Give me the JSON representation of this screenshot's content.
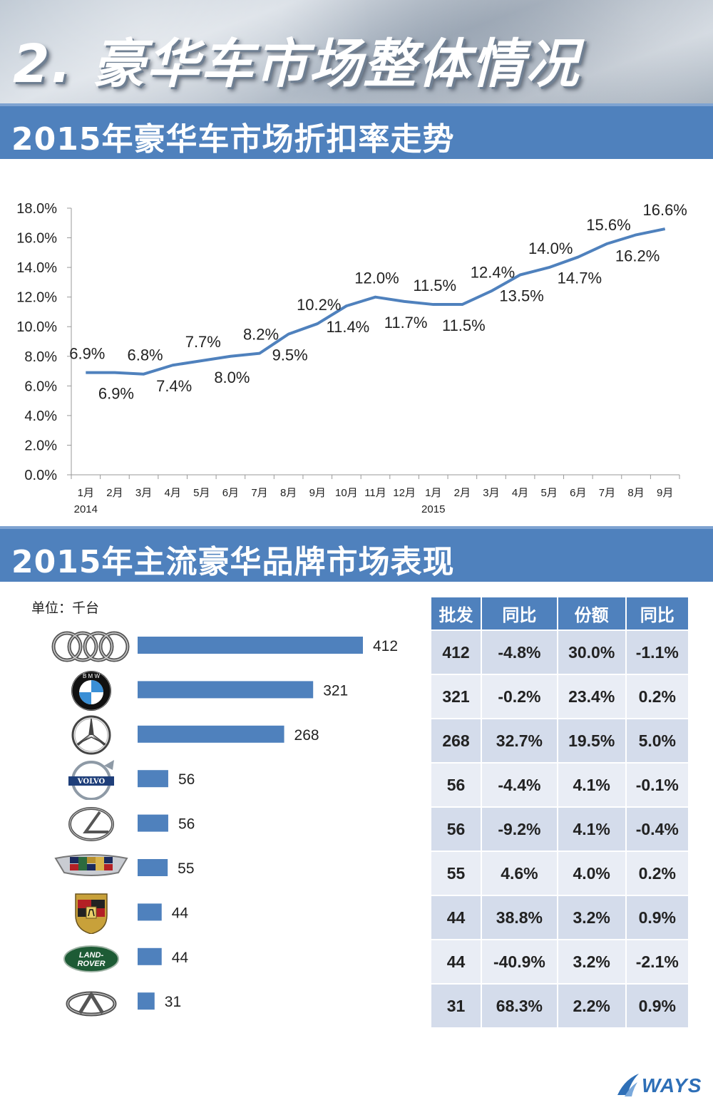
{
  "header": {
    "title": "2. 豪华车市场整体情况"
  },
  "sections": {
    "discount_title": "2015年豪华车市场折扣率走势",
    "brands_title": "2015年主流豪华品牌市场表现"
  },
  "chart_data": [
    {
      "type": "line",
      "title": "2015年豪华车市场折扣率走势",
      "categories": [
        "1月",
        "2月",
        "3月",
        "4月",
        "5月",
        "6月",
        "7月",
        "8月",
        "9月",
        "10月",
        "11月",
        "12月",
        "1月",
        "2月",
        "3月",
        "4月",
        "5月",
        "6月",
        "7月",
        "8月",
        "9月"
      ],
      "year_labels": [
        {
          "index": 0,
          "label": "2014"
        },
        {
          "index": 12,
          "label": "2015"
        }
      ],
      "values": [
        6.9,
        6.9,
        6.8,
        7.4,
        7.7,
        8.0,
        8.2,
        9.5,
        10.2,
        11.4,
        12.0,
        11.7,
        11.5,
        11.5,
        12.4,
        13.5,
        14.0,
        14.7,
        15.6,
        16.2,
        16.6
      ],
      "value_labels": [
        "6.9%",
        "6.9%",
        "6.8%",
        "7.4%",
        "7.7%",
        "8.0%",
        "8.2%",
        "9.5%",
        "10.2%",
        "11.4%",
        "12.0%",
        "11.7%",
        "11.5%",
        "11.5%",
        "12.4%",
        "13.5%",
        "14.0%",
        "14.7%",
        "15.6%",
        "16.2%",
        "16.6%"
      ],
      "label_position": [
        "above",
        "below",
        "above",
        "below",
        "above",
        "below",
        "above",
        "below",
        "above",
        "below",
        "above",
        "below",
        "above",
        "below",
        "above",
        "below",
        "above",
        "below",
        "above",
        "below",
        "above"
      ],
      "ylim": [
        0,
        18
      ],
      "yticks": [
        "0.0%",
        "2.0%",
        "4.0%",
        "6.0%",
        "8.0%",
        "10.0%",
        "12.0%",
        "14.0%",
        "16.0%",
        "18.0%"
      ],
      "xlabel": "",
      "ylabel": ""
    },
    {
      "type": "bar",
      "orientation": "horizontal",
      "unit": "单位：千台",
      "categories": [
        "Audi",
        "BMW",
        "Mercedes-Benz",
        "Volvo",
        "Lexus",
        "Cadillac",
        "Porsche",
        "Land Rover",
        "Infiniti"
      ],
      "values": [
        412,
        321,
        268,
        56,
        56,
        55,
        44,
        44,
        31
      ],
      "xlim": [
        0,
        412
      ]
    },
    {
      "type": "table",
      "columns": [
        "批发",
        "同比",
        "份额",
        "同比"
      ],
      "rows": [
        [
          "412",
          "-4.8%",
          "30.0%",
          "-1.1%"
        ],
        [
          "321",
          "-0.2%",
          "23.4%",
          "0.2%"
        ],
        [
          "268",
          "32.7%",
          "19.5%",
          "5.0%"
        ],
        [
          "56",
          "-4.4%",
          "4.1%",
          "-0.1%"
        ],
        [
          "56",
          "-9.2%",
          "4.1%",
          "-0.4%"
        ],
        [
          "55",
          "4.6%",
          "4.0%",
          "0.2%"
        ],
        [
          "44",
          "38.8%",
          "3.2%",
          "0.9%"
        ],
        [
          "44",
          "-40.9%",
          "3.2%",
          "-2.1%"
        ],
        [
          "31",
          "68.3%",
          "2.2%",
          "0.9%"
        ]
      ]
    }
  ],
  "logos": {
    "volvo_text": "VOLVO",
    "landrover_line1": "LAND-",
    "landrover_line2": "ROVER",
    "bmw_letters": "B M W"
  },
  "footer": {
    "brand": "WAYS"
  },
  "colors": {
    "accent": "#4f81bd",
    "line": "#4f81bd",
    "table_row": "#d4dceb"
  }
}
